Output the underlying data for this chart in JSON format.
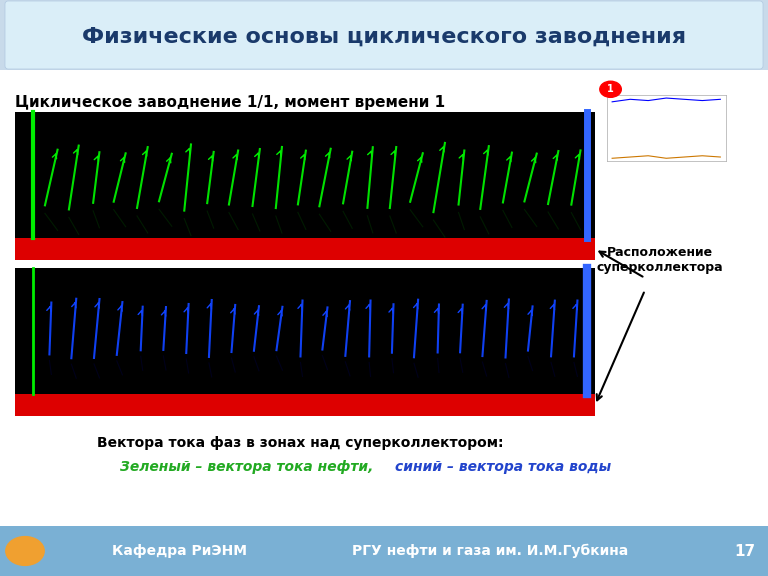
{
  "title": "Физические основы циклического заводнения",
  "subtitle": "Циклическое заводнение 1/1, момент времени 1",
  "bottom_label1": "Вектора тока фаз в зонах над суперколлектором:",
  "bottom_label2_green": "Зеленый – вектора тока нефти, ",
  "bottom_label2_blue": "синий – вектора тока воды",
  "annotation": "Расположение\nсуперколлектора",
  "footer_left": "Кафедра РиЭНМ",
  "footer_right": "РГУ нефти и газа им. И.М.Губкина",
  "footer_num": "17",
  "header_bg_top": "#b8cfe0",
  "header_bg_bottom": "#daeaf8",
  "title_color": "#1a3a6b",
  "footer_bg": "#7ab0d4",
  "footer_text_color": "#ffffff",
  "panel_bg": "#000000",
  "red_strip_color": "#dd0000",
  "green_color": "#00ee00",
  "blue_color": "#1144ff",
  "num_green_vectors": 24,
  "num_blue_vectors": 24
}
